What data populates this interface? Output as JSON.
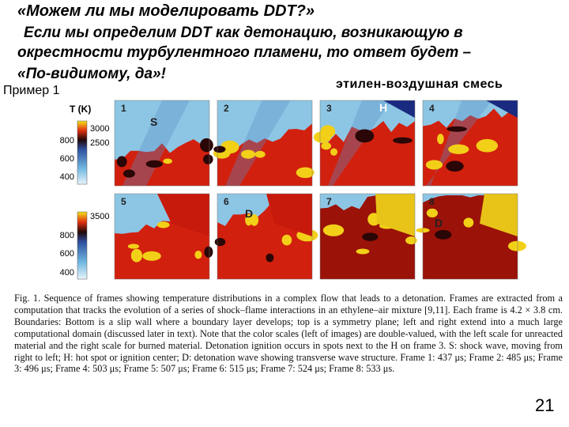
{
  "header": {
    "title": "«Можем ли мы моделировать DDT?»",
    "lines": [
      "Если мы определим DDT как детонацию, возникающую в",
      "окрестности турбулентного пламени, то ответ будет –",
      "«По-видимому, да»!"
    ]
  },
  "example_label": "Пример 1",
  "mixture_label": "этилен-воздушная смесь",
  "figure": {
    "axis_title": "T (K)",
    "scale_top": {
      "right": [
        "3000",
        "2500"
      ],
      "left": [
        "800",
        "600",
        "400"
      ]
    },
    "scale_bottom": {
      "right": [
        "3500"
      ],
      "left": [
        "800",
        "600",
        "400"
      ]
    },
    "frames": [
      {
        "number": "1",
        "mark": "S"
      },
      {
        "number": "2"
      },
      {
        "number": "3",
        "mark": "H"
      },
      {
        "number": "4"
      },
      {
        "number": "5"
      },
      {
        "number": "6",
        "mark": "D"
      },
      {
        "number": "7"
      },
      {
        "number": "8",
        "mark": "D"
      }
    ],
    "caption": "Fig. 1. Sequence of frames showing temperature distributions in a complex flow that leads to a detonation. Frames are extracted from a computation that tracks the evolution of a series of shock–flame interactions in an ethylene–air mixture [9,11]. Each frame is 4.2 × 3.8 cm. Boundaries: Bottom is a slip wall where a boundary layer develops; top is a symmetry plane; left and right extend into a much large computational domain (discussed later in text). Note that the color scales (left of images) are double-valued, with the left scale for unreacted material and the right scale for burned material. Detonation ignition occurs in spots next to the H on frame 3. S: shock wave, moving from right to left; H: hot spot or ignition center; D: detonation wave showing transverse wave structure. Frame 1: 437 μs; Frame 2: 485 μs; Frame 3: 496 μs; Frame 4: 503 μs; Frame 5: 507 μs; Frame 6: 515 μs; Frame 7: 524 μs; Frame 8: 533 μs."
  },
  "page_number": "21"
}
